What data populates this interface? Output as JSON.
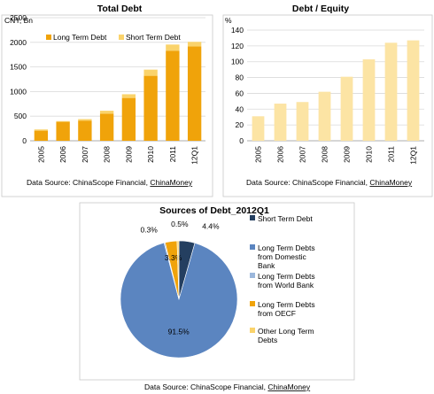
{
  "chart_data": [
    {
      "type": "bar",
      "title": "Total Debt",
      "unit_label": "CNY, Bn",
      "categories": [
        "2005",
        "2006",
        "2007",
        "2008",
        "2009",
        "2010",
        "2011",
        "12Q1"
      ],
      "series": [
        {
          "name": "Long Term Debt",
          "values": [
            205,
            385,
            410,
            550,
            870,
            1320,
            1830,
            1915
          ],
          "color": "#F0A30A"
        },
        {
          "name": "Short Term Debt",
          "values": [
            25,
            15,
            30,
            60,
            75,
            125,
            125,
            95
          ],
          "color": "#FAD36B"
        }
      ],
      "stacked": true,
      "ylim": [
        0,
        2500
      ],
      "yticks": [
        0,
        500,
        1000,
        1500,
        2000,
        2500
      ],
      "grid": true,
      "legend": "top-left",
      "source_prefix": "Data Source: ChinaScope Financial, ",
      "source_link": "ChinaMoney"
    },
    {
      "type": "bar",
      "title": "Debt / Equity",
      "unit_label": "%",
      "categories": [
        "2005",
        "2006",
        "2007",
        "2008",
        "2009",
        "2010",
        "2011",
        "12Q1"
      ],
      "values": [
        31,
        47,
        49,
        62,
        81,
        103,
        124,
        127
      ],
      "color": "#FCE4A4",
      "ylim": [
        0,
        140
      ],
      "yticks": [
        0,
        20,
        40,
        60,
        80,
        100,
        120,
        140
      ],
      "grid": true,
      "source_prefix": "Data Source: ChinaScope Financial, ",
      "source_link": "ChinaMoney"
    },
    {
      "type": "pie",
      "title": "Sources of Debt_2012Q1",
      "slices": [
        {
          "name": "Short Term Debt",
          "value": 4.4,
          "label": "4.4%",
          "color": "#243F60"
        },
        {
          "name": "Long Term Debts from Domestic Bank",
          "value": 91.5,
          "label": "91.5%",
          "color": "#5B85C0"
        },
        {
          "name": "Long Term Debts from World Bank",
          "value": 0.3,
          "label": "0.3%",
          "color": "#9BB7DC"
        },
        {
          "name": "Long Term Debts from OECF",
          "value": 3.3,
          "label": "3.3%",
          "color": "#F0A30A"
        },
        {
          "name": "Other Long Term Debts",
          "value": 0.5,
          "label": "0.5%",
          "color": "#FAD36B"
        }
      ],
      "legend_lines": [
        [
          "Short Term Debt"
        ],
        [
          "Long Term Debts",
          "from Domestic",
          "Bank"
        ],
        [
          "Long Term Debts",
          "from World Bank"
        ],
        [
          "Long Term Debts",
          "from OECF"
        ],
        [
          "Other Long Term",
          "Debts"
        ]
      ],
      "legend": "right",
      "source_prefix": "Data Source: ChinaScope Financial, ",
      "source_link": "ChinaMoney"
    }
  ]
}
